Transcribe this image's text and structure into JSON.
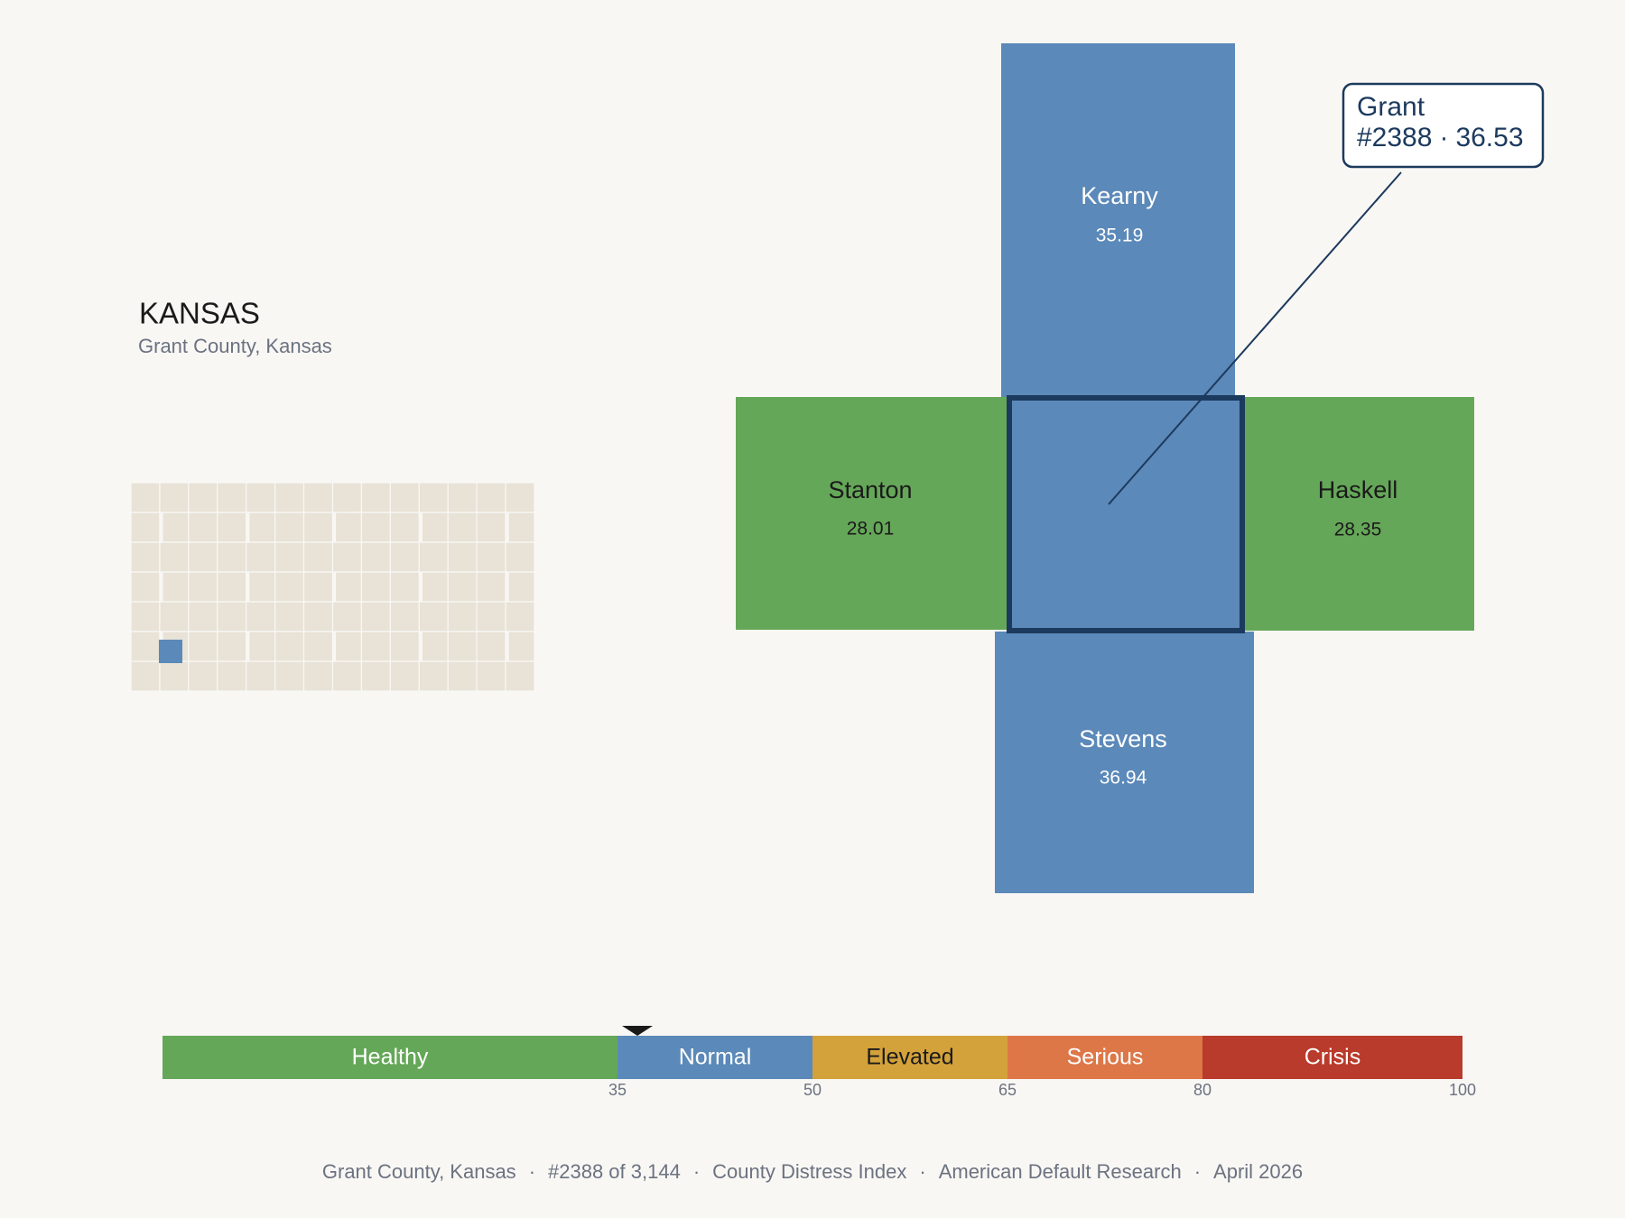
{
  "header": {
    "title": "KANSAS",
    "subtitle": "Grant County, Kansas"
  },
  "county": {
    "name": "Grant",
    "rank_label": "#2388",
    "separator": "·",
    "score": 36.53,
    "color": "#5b89b9"
  },
  "neighbors": [
    {
      "name": "Kearny",
      "value": 35.19,
      "color": "#5b89b9"
    },
    {
      "name": "Stanton",
      "value": 28.01,
      "color": "#65a758"
    },
    {
      "name": "Haskell",
      "value": 28.35,
      "color": "#65a758"
    },
    {
      "name": "Stevens",
      "value": 36.94,
      "color": "#5b89b9"
    }
  ],
  "scale": {
    "range": [
      0,
      100
    ],
    "ticks": [
      35,
      50,
      65,
      80,
      100
    ],
    "bands": [
      {
        "name": "Healthy",
        "color": "#65a758"
      },
      {
        "name": "Normal",
        "color": "#5b89b9"
      },
      {
        "name": "Elevated",
        "color": "#d4a23a"
      },
      {
        "name": "Serious",
        "color": "#de7748"
      },
      {
        "name": "Crisis",
        "color": "#b93b2b"
      }
    ]
  },
  "footer": {
    "items": [
      "Grant County, Kansas",
      "#2388 of 3,144",
      "County Distress Index",
      "American Default Research",
      "April 2026"
    ],
    "separator": "·"
  }
}
